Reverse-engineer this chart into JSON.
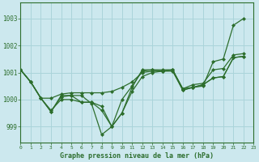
{
  "title": "Graphe pression niveau de la mer (hPa)",
  "bg_color": "#cce8ee",
  "grid_color": "#aad4da",
  "line_color": "#2d6e2d",
  "marker_color": "#2d6e2d",
  "xlim": [
    0,
    23
  ],
  "ylim": [
    998.4,
    1003.6
  ],
  "yticks": [
    999,
    1000,
    1001,
    1002,
    1003
  ],
  "xticks": [
    0,
    1,
    2,
    3,
    4,
    5,
    6,
    7,
    8,
    9,
    10,
    11,
    12,
    13,
    14,
    15,
    16,
    17,
    18,
    19,
    20,
    21,
    22,
    23
  ],
  "series": [
    [
      1001.1,
      1000.65,
      1000.05,
      999.55,
      1000.15,
      1000.15,
      1000.15,
      999.85,
      998.7,
      999.0,
      1000.0,
      1000.5,
      1001.05,
      1001.1,
      1001.05,
      1001.1,
      1000.35,
      1000.45,
      1000.5,
      1001.4,
      1001.5,
      1002.75,
      1003.0
    ],
    [
      1001.1,
      1000.65,
      1000.05,
      1000.05,
      1000.2,
      1000.25,
      1000.25,
      1000.25,
      1000.25,
      1000.3,
      1000.45,
      1000.65,
      1001.0,
      1001.05,
      1001.05,
      1001.05,
      1000.35,
      1000.45,
      1000.55,
      1000.8,
      1000.85,
      1001.55,
      1001.6
    ],
    [
      1001.1,
      1000.65,
      1000.05,
      999.55,
      1000.1,
      1000.15,
      999.9,
      999.9,
      999.75,
      999.0,
      999.5,
      1000.45,
      1001.1,
      1001.1,
      1001.1,
      1001.1,
      1000.4,
      1000.55,
      1000.6,
      1001.1,
      1001.15,
      1001.65,
      1001.7
    ],
    [
      1001.1,
      1000.65,
      1000.05,
      999.6,
      1000.0,
      1000.0,
      999.9,
      999.9,
      999.6,
      999.0,
      999.5,
      1000.3,
      1000.85,
      1001.0,
      1001.05,
      1001.1,
      1000.4,
      1000.45,
      1000.55,
      1000.8,
      1000.85,
      1001.55,
      1001.6
    ]
  ]
}
